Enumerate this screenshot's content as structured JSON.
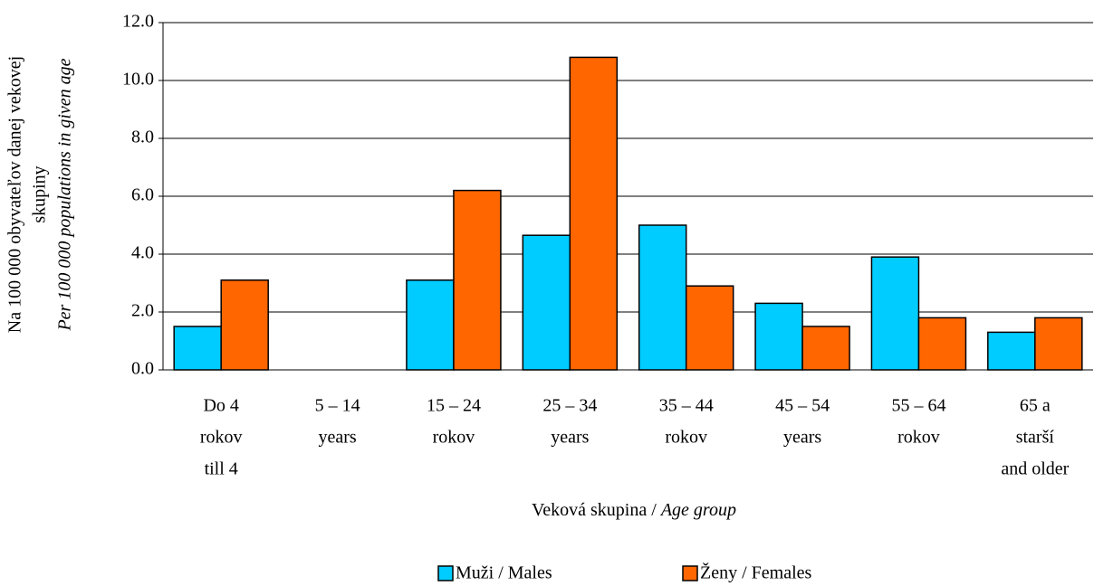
{
  "chart_data": {
    "type": "bar",
    "ylabel": [
      "Na 100 000 obyvateľov danej vekovej",
      "skupiny"
    ],
    "ylabel_en": "Per 100 000 populations in given age",
    "xlabel": [
      "Veková skupina /",
      "Age group"
    ],
    "categories": [
      [
        "Do 4",
        "rokov",
        "till 4"
      ],
      [
        "5 – 14",
        "years"
      ],
      [
        "15 – 24",
        "rokov"
      ],
      [
        "25 – 34",
        "years"
      ],
      [
        "35 – 44",
        "rokov"
      ],
      [
        "45 – 54",
        "years"
      ],
      [
        "55 – 64",
        "rokov"
      ],
      [
        "65 a",
        "starší",
        "and older"
      ]
    ],
    "series": [
      {
        "name": "Muži / Males",
        "color": "#00ccff",
        "values": [
          1.5,
          0,
          3.1,
          4.65,
          5.0,
          2.3,
          3.9,
          1.3
        ]
      },
      {
        "name": "Ženy / Females",
        "color": "#ff6600",
        "values": [
          3.1,
          0,
          6.2,
          10.8,
          2.9,
          1.5,
          1.8,
          1.8
        ]
      }
    ],
    "ylim": [
      0,
      12
    ],
    "yticks": [
      {
        "value": 0,
        "label": "0.0"
      },
      {
        "value": 2,
        "label": "2.0"
      },
      {
        "value": 4,
        "label": "4.0"
      },
      {
        "value": 6,
        "label": "6.0"
      },
      {
        "value": 8,
        "label": "8.0"
      },
      {
        "value": 10,
        "label": "10.0"
      },
      {
        "value": 12,
        "label": "12.0"
      }
    ],
    "grid": true,
    "legend": "bottom"
  }
}
